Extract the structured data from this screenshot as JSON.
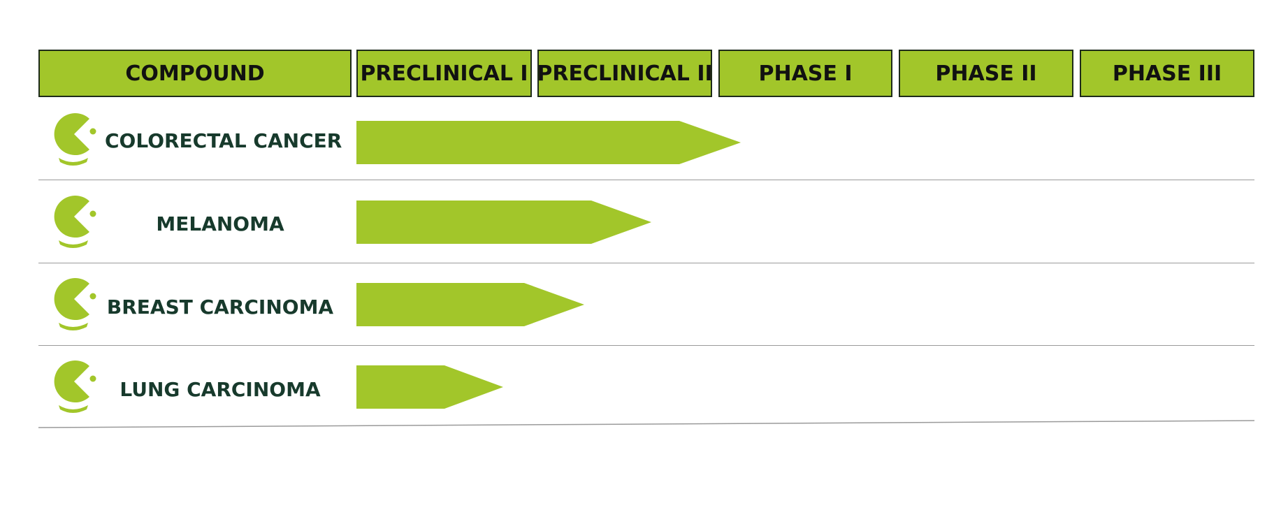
{
  "colors": {
    "accent": "#a2c62a",
    "header_border": "#1e2b1a",
    "label_text": "#173a2c"
  },
  "headers": {
    "compound": "COMPOUND",
    "stages": [
      "PRECLINICAL I",
      "PRECLINICAL II",
      "PHASE I",
      "PHASE II",
      "PHASE III"
    ]
  },
  "rows": [
    {
      "label": "COLORECTAL CANCER",
      "icon": "pacman-icon"
    },
    {
      "label": "MELANOMA",
      "icon": "pacman-icon"
    },
    {
      "label": "BREAST CARCINOMA",
      "icon": "pacman-icon"
    },
    {
      "label": "LUNG CARCINOMA",
      "icon": "pacman-icon"
    }
  ]
}
